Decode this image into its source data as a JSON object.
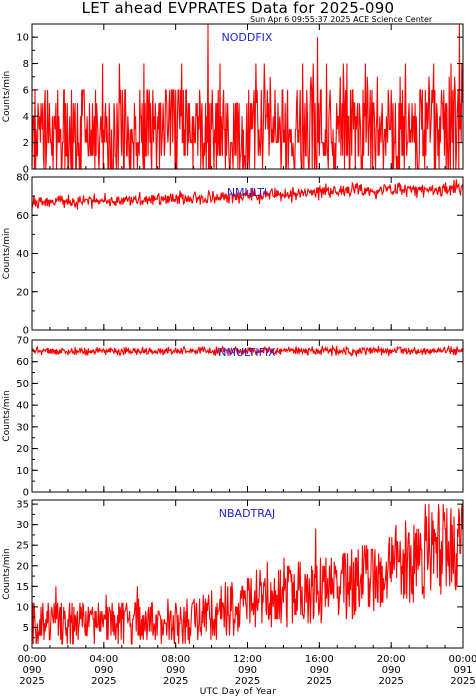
{
  "header": {
    "title": "LET ahead EVPRATES Data for 2025-090",
    "timestamp": "Sun Apr  6 09:55:37 2025 ACE Science Center"
  },
  "x_axis": {
    "title": "UTC Day of Year",
    "ticks": [
      {
        "time": "00:00",
        "doy": "090",
        "year": "2025"
      },
      {
        "time": "04:00",
        "doy": "090",
        "year": "2025"
      },
      {
        "time": "08:00",
        "doy": "090",
        "year": "2025"
      },
      {
        "time": "12:00",
        "doy": "090",
        "year": "2025"
      },
      {
        "time": "16:00",
        "doy": "090",
        "year": "2025"
      },
      {
        "time": "20:00",
        "doy": "090",
        "year": "2025"
      },
      {
        "time": "00:00",
        "doy": "091",
        "year": "2025"
      }
    ]
  },
  "colors": {
    "series": "#ff0000",
    "label": "#1f1fd6",
    "axis": "#000000"
  },
  "chart_data": [
    {
      "type": "line",
      "series_label": "NODDFIX",
      "ylabel": "Counts/min",
      "ylim": [
        0,
        11
      ],
      "yticks": [
        0,
        2,
        4,
        6,
        8,
        10
      ],
      "x_unit": "hours since 090 00:00",
      "xlim": [
        0,
        24
      ],
      "shape": [
        [
          0,
          2.5
        ],
        [
          6,
          2.6
        ],
        [
          10,
          2.7
        ],
        [
          16,
          2.9
        ],
        [
          20,
          3.0
        ],
        [
          24,
          3.0
        ]
      ],
      "noise": {
        "type": "poisson-like",
        "min": 0,
        "max": 8
      },
      "spikes": [
        [
          9.8,
          11
        ],
        [
          15.9,
          10
        ],
        [
          23.8,
          11
        ]
      ]
    },
    {
      "type": "line",
      "series_label": "NMULTI",
      "ylabel": "Counts/min",
      "ylim": [
        0,
        80
      ],
      "yticks": [
        0,
        20,
        40,
        60,
        80
      ],
      "x_unit": "hours since 090 00:00",
      "xlim": [
        0,
        24
      ],
      "shape": [
        [
          0,
          67
        ],
        [
          6,
          68
        ],
        [
          10,
          69
        ],
        [
          14,
          71
        ],
        [
          18,
          73
        ],
        [
          24,
          74
        ]
      ],
      "noise": {
        "type": "gaussian",
        "amp": 3
      },
      "spikes": []
    },
    {
      "type": "line",
      "series_label": "NMULTIFIX",
      "ylabel": "Counts/min",
      "ylim": [
        0,
        70
      ],
      "yticks": [
        0,
        10,
        20,
        30,
        40,
        50,
        60,
        70
      ],
      "x_unit": "hours since 090 00:00",
      "xlim": [
        0,
        24
      ],
      "shape": [
        [
          0,
          65
        ],
        [
          12,
          65
        ],
        [
          24,
          65
        ]
      ],
      "noise": {
        "type": "gaussian",
        "amp": 1.6
      },
      "spikes": []
    },
    {
      "type": "line",
      "series_label": "NBADTRAJ",
      "ylabel": "Counts/min",
      "ylim": [
        0,
        36
      ],
      "yticks": [
        0,
        5,
        10,
        15,
        20,
        25,
        30,
        35
      ],
      "x_unit": "hours since 090 00:00",
      "xlim": [
        0,
        24
      ],
      "shape": [
        [
          0,
          6
        ],
        [
          4,
          6
        ],
        [
          9,
          6.5
        ],
        [
          10,
          8
        ],
        [
          12,
          11
        ],
        [
          16,
          14
        ],
        [
          20,
          18
        ],
        [
          22,
          22
        ],
        [
          24,
          25
        ]
      ],
      "noise": {
        "type": "poisson-like",
        "min": 0,
        "max": 35
      },
      "spikes": [
        [
          15.8,
          29
        ],
        [
          22.9,
          35
        ]
      ]
    }
  ]
}
